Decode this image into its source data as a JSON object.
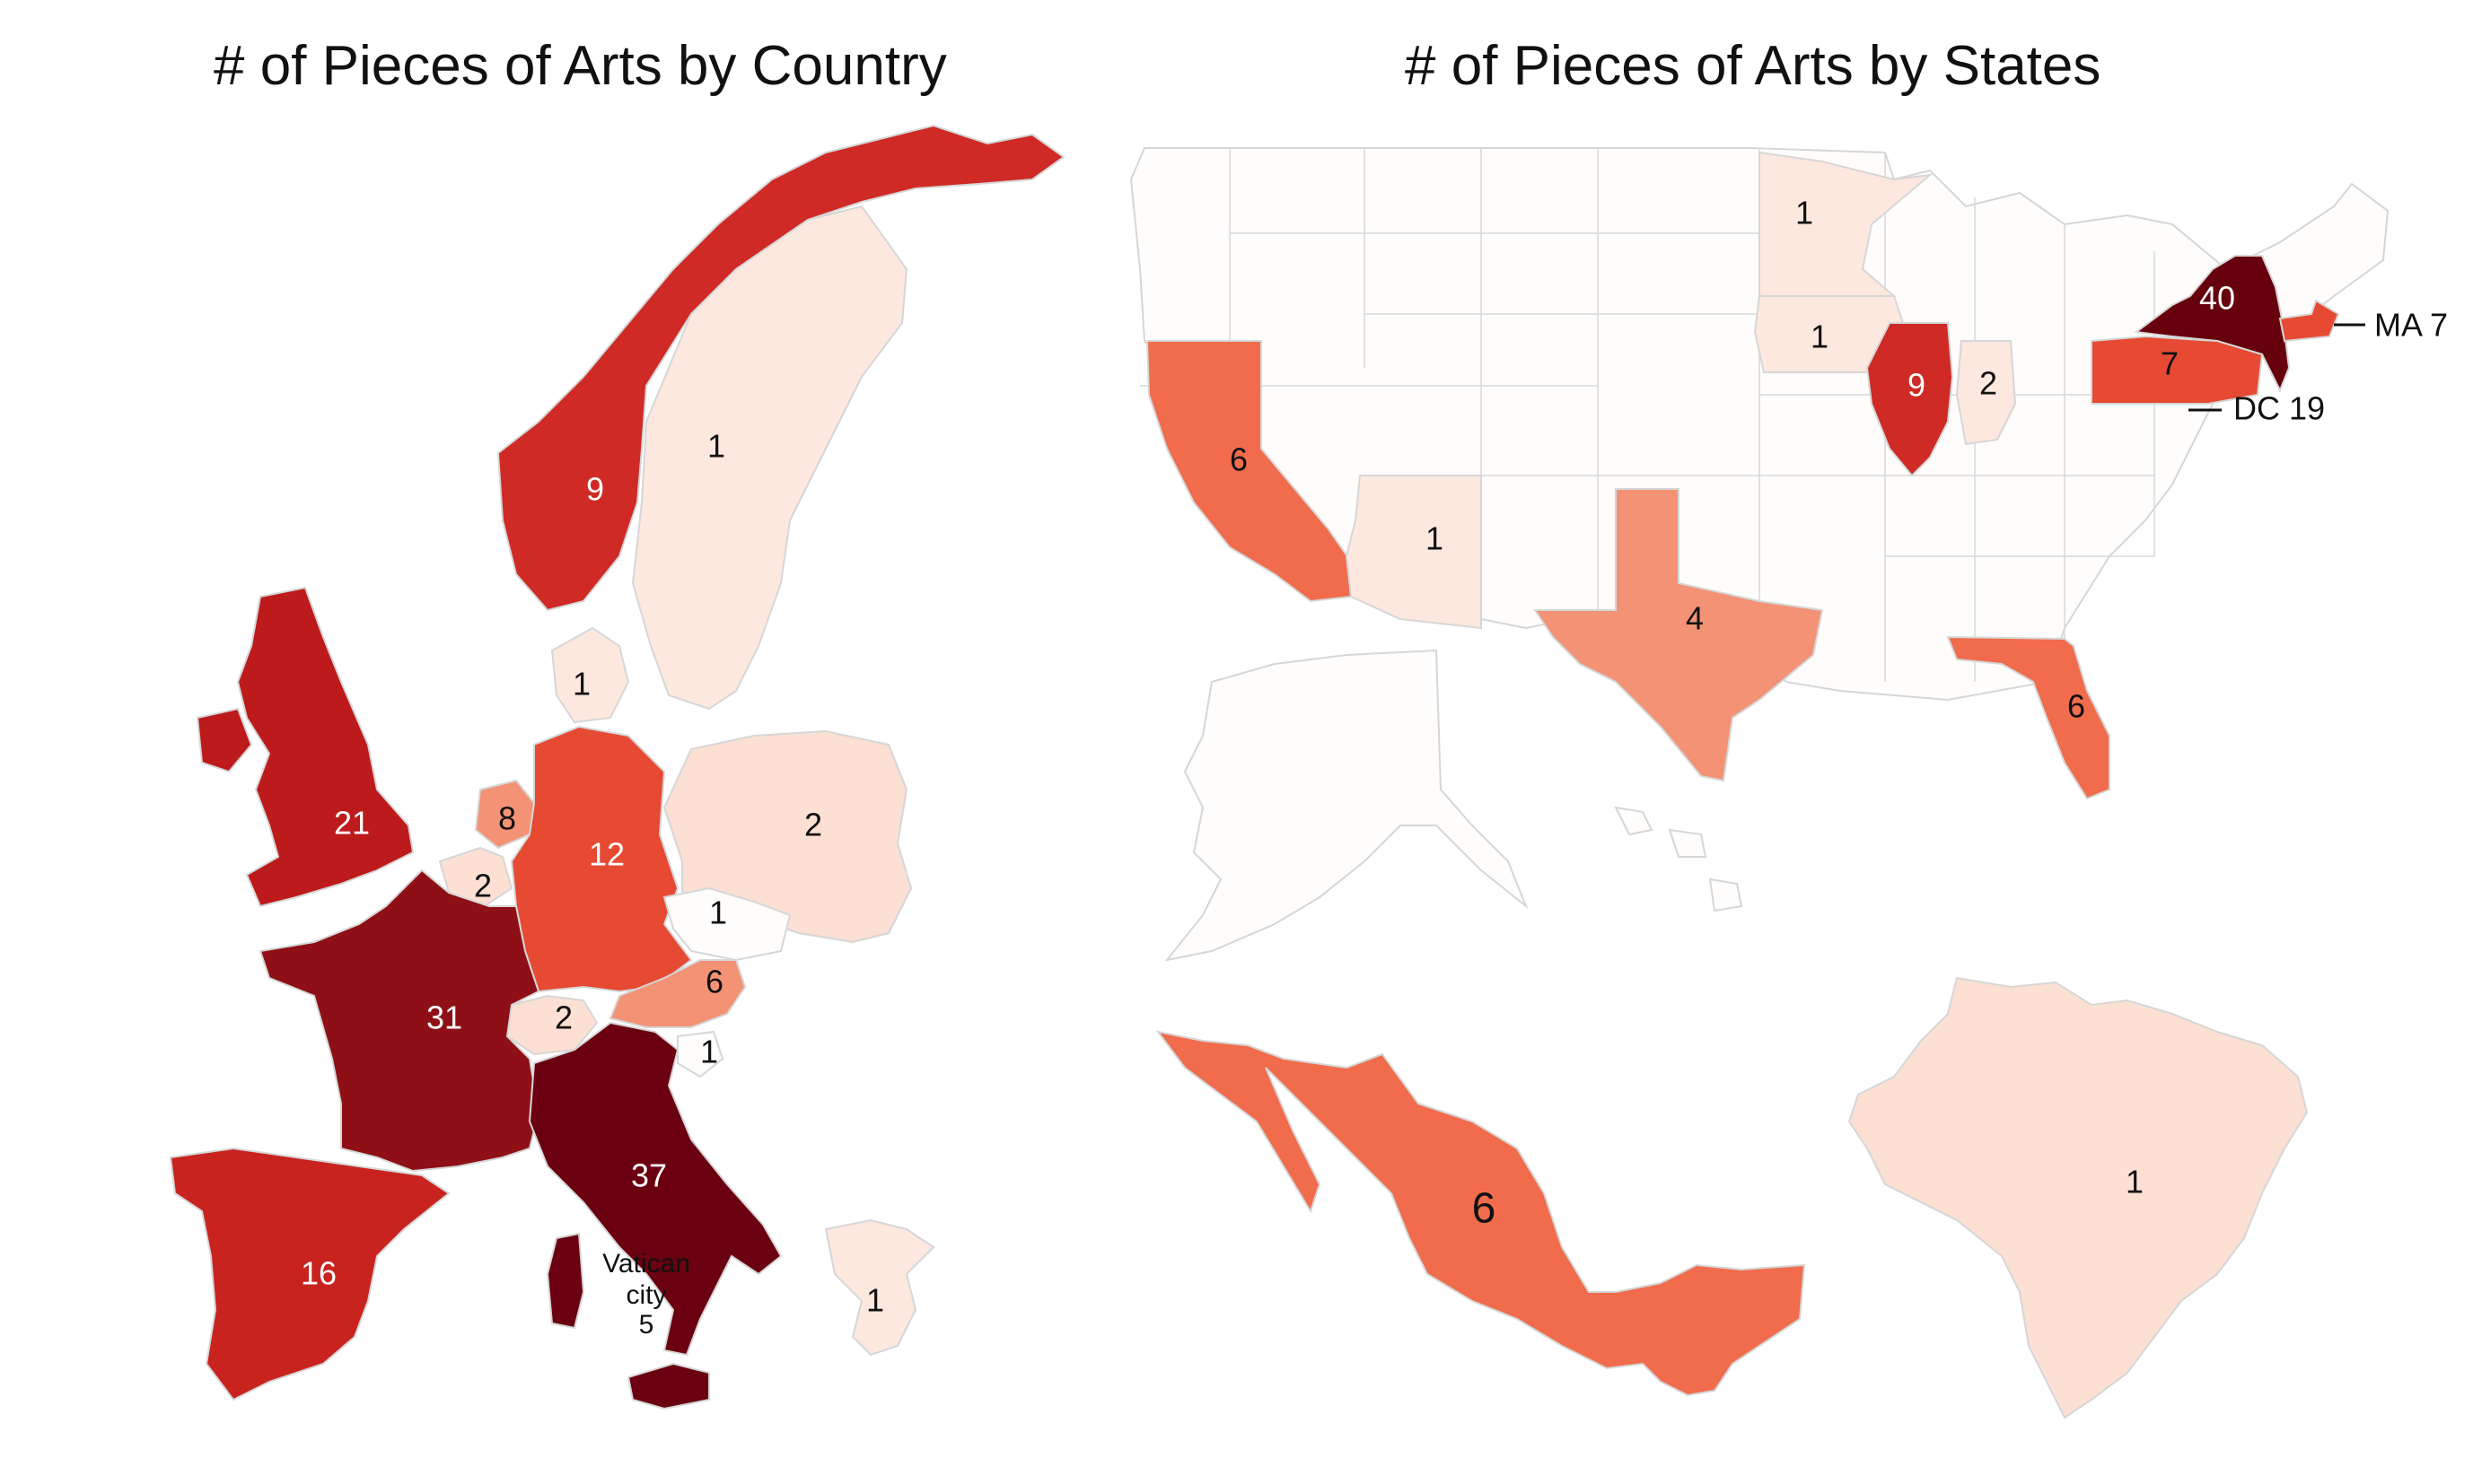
{
  "titles": {
    "left": "# of Pieces of Arts by Country",
    "right": "# of Pieces of Arts by States"
  },
  "colors": {
    "c0": "#fefdfc",
    "c1": "#fde8df",
    "c2": "#fbe0d3",
    "c4": "#f39275",
    "c6": "#f06c4c",
    "c7": "#e64a33",
    "c9": "#cf2a25",
    "c16": "#c8231f",
    "c19": "#bd1a1c",
    "c31": "#8e1016",
    "c37": "#6a0010",
    "c40": "#67000d",
    "border": "#d6d6d6"
  },
  "europe": [
    {
      "name": "Norway",
      "value": 9
    },
    {
      "name": "Sweden",
      "value": 1
    },
    {
      "name": "Denmark",
      "value": 1
    },
    {
      "name": "United Kingdom",
      "value": 21
    },
    {
      "name": "Netherlands",
      "value": 8
    },
    {
      "name": "Belgium",
      "value": 2
    },
    {
      "name": "Germany",
      "value": 12
    },
    {
      "name": "Poland",
      "value": 2
    },
    {
      "name": "Czechia",
      "value": 1
    },
    {
      "name": "Austria",
      "value": 6
    },
    {
      "name": "Switzerland",
      "value": 2
    },
    {
      "name": "Slovenia",
      "value": 1
    },
    {
      "name": "France",
      "value": 31
    },
    {
      "name": "Italy",
      "value": 37
    },
    {
      "name": "Spain",
      "value": 16
    },
    {
      "name": "Greece",
      "value": 1
    },
    {
      "name": "Vatican city",
      "value": 5
    }
  ],
  "vatican_label": [
    "Vatican",
    "city",
    "5"
  ],
  "usa": [
    {
      "name": "Minnesota",
      "value": 1
    },
    {
      "name": "Iowa",
      "value": 1
    },
    {
      "name": "Illinois",
      "value": 9
    },
    {
      "name": "Indiana",
      "value": 2
    },
    {
      "name": "New York",
      "value": 40
    },
    {
      "name": "Pennsylvania",
      "value": 7
    },
    {
      "name": "Massachusetts",
      "value": 7
    },
    {
      "name": "District of Columbia",
      "value": 19
    },
    {
      "name": "California",
      "value": 6
    },
    {
      "name": "Arizona",
      "value": 1
    },
    {
      "name": "Texas",
      "value": 4
    },
    {
      "name": "Florida",
      "value": 6
    }
  ],
  "callouts": {
    "ma": "MA 7",
    "dc": "DC 19"
  },
  "others": [
    {
      "name": "Mexico",
      "value": 6
    },
    {
      "name": "Brazil",
      "value": 1
    }
  ]
}
